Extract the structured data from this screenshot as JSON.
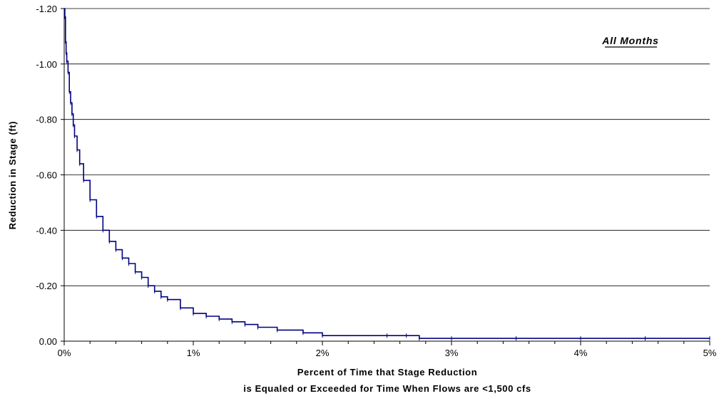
{
  "chart_data": {
    "type": "line",
    "title": "",
    "annotation": "All Months",
    "xlabel_line1": "Percent of Time that Stage Reduction",
    "xlabel_line2": "is Equaled or Exceeded for Time When Flows are <1,500 cfs",
    "ylabel": "Reduction in Stage (ft)",
    "xlim": [
      0,
      5
    ],
    "ylim": [
      -1.2,
      0
    ],
    "y_inverted": true,
    "grid": "horizontal",
    "legend": "none",
    "line_color": "#000080",
    "x_ticks": [
      0,
      1,
      2,
      3,
      4,
      5
    ],
    "x_tick_labels": [
      "0%",
      "1%",
      "2%",
      "3%",
      "4%",
      "5%"
    ],
    "y_ticks": [
      -1.2,
      -1.0,
      -0.8,
      -0.6,
      -0.4,
      -0.2,
      0.0
    ],
    "y_tick_labels": [
      "-1.20",
      "-1.00",
      "-0.80",
      "-0.60",
      "-0.40",
      "-0.20",
      "0.00"
    ],
    "series": [
      {
        "x": [
          0.0,
          0.005,
          0.01,
          0.015,
          0.02,
          0.03,
          0.04,
          0.05,
          0.06,
          0.07,
          0.08,
          0.1,
          0.12,
          0.15,
          0.2,
          0.25,
          0.3,
          0.35,
          0.4,
          0.45,
          0.5,
          0.55,
          0.6,
          0.65,
          0.7,
          0.75,
          0.8,
          0.9,
          1.0,
          1.1,
          1.2,
          1.3,
          1.4,
          1.5,
          1.65,
          1.85,
          2.0,
          2.5,
          2.65,
          2.75,
          3.0,
          3.5,
          4.0,
          4.5,
          5.0
        ],
        "y": [
          -1.2,
          -1.17,
          -1.08,
          -1.04,
          -1.01,
          -0.97,
          -0.9,
          -0.86,
          -0.82,
          -0.78,
          -0.74,
          -0.69,
          -0.64,
          -0.58,
          -0.51,
          -0.45,
          -0.4,
          -0.36,
          -0.33,
          -0.3,
          -0.28,
          -0.25,
          -0.23,
          -0.2,
          -0.18,
          -0.16,
          -0.15,
          -0.12,
          -0.1,
          -0.09,
          -0.08,
          -0.07,
          -0.06,
          -0.05,
          -0.04,
          -0.03,
          -0.02,
          -0.02,
          -0.02,
          -0.01,
          -0.01,
          -0.01,
          -0.01,
          -0.01,
          -0.01
        ]
      }
    ]
  }
}
